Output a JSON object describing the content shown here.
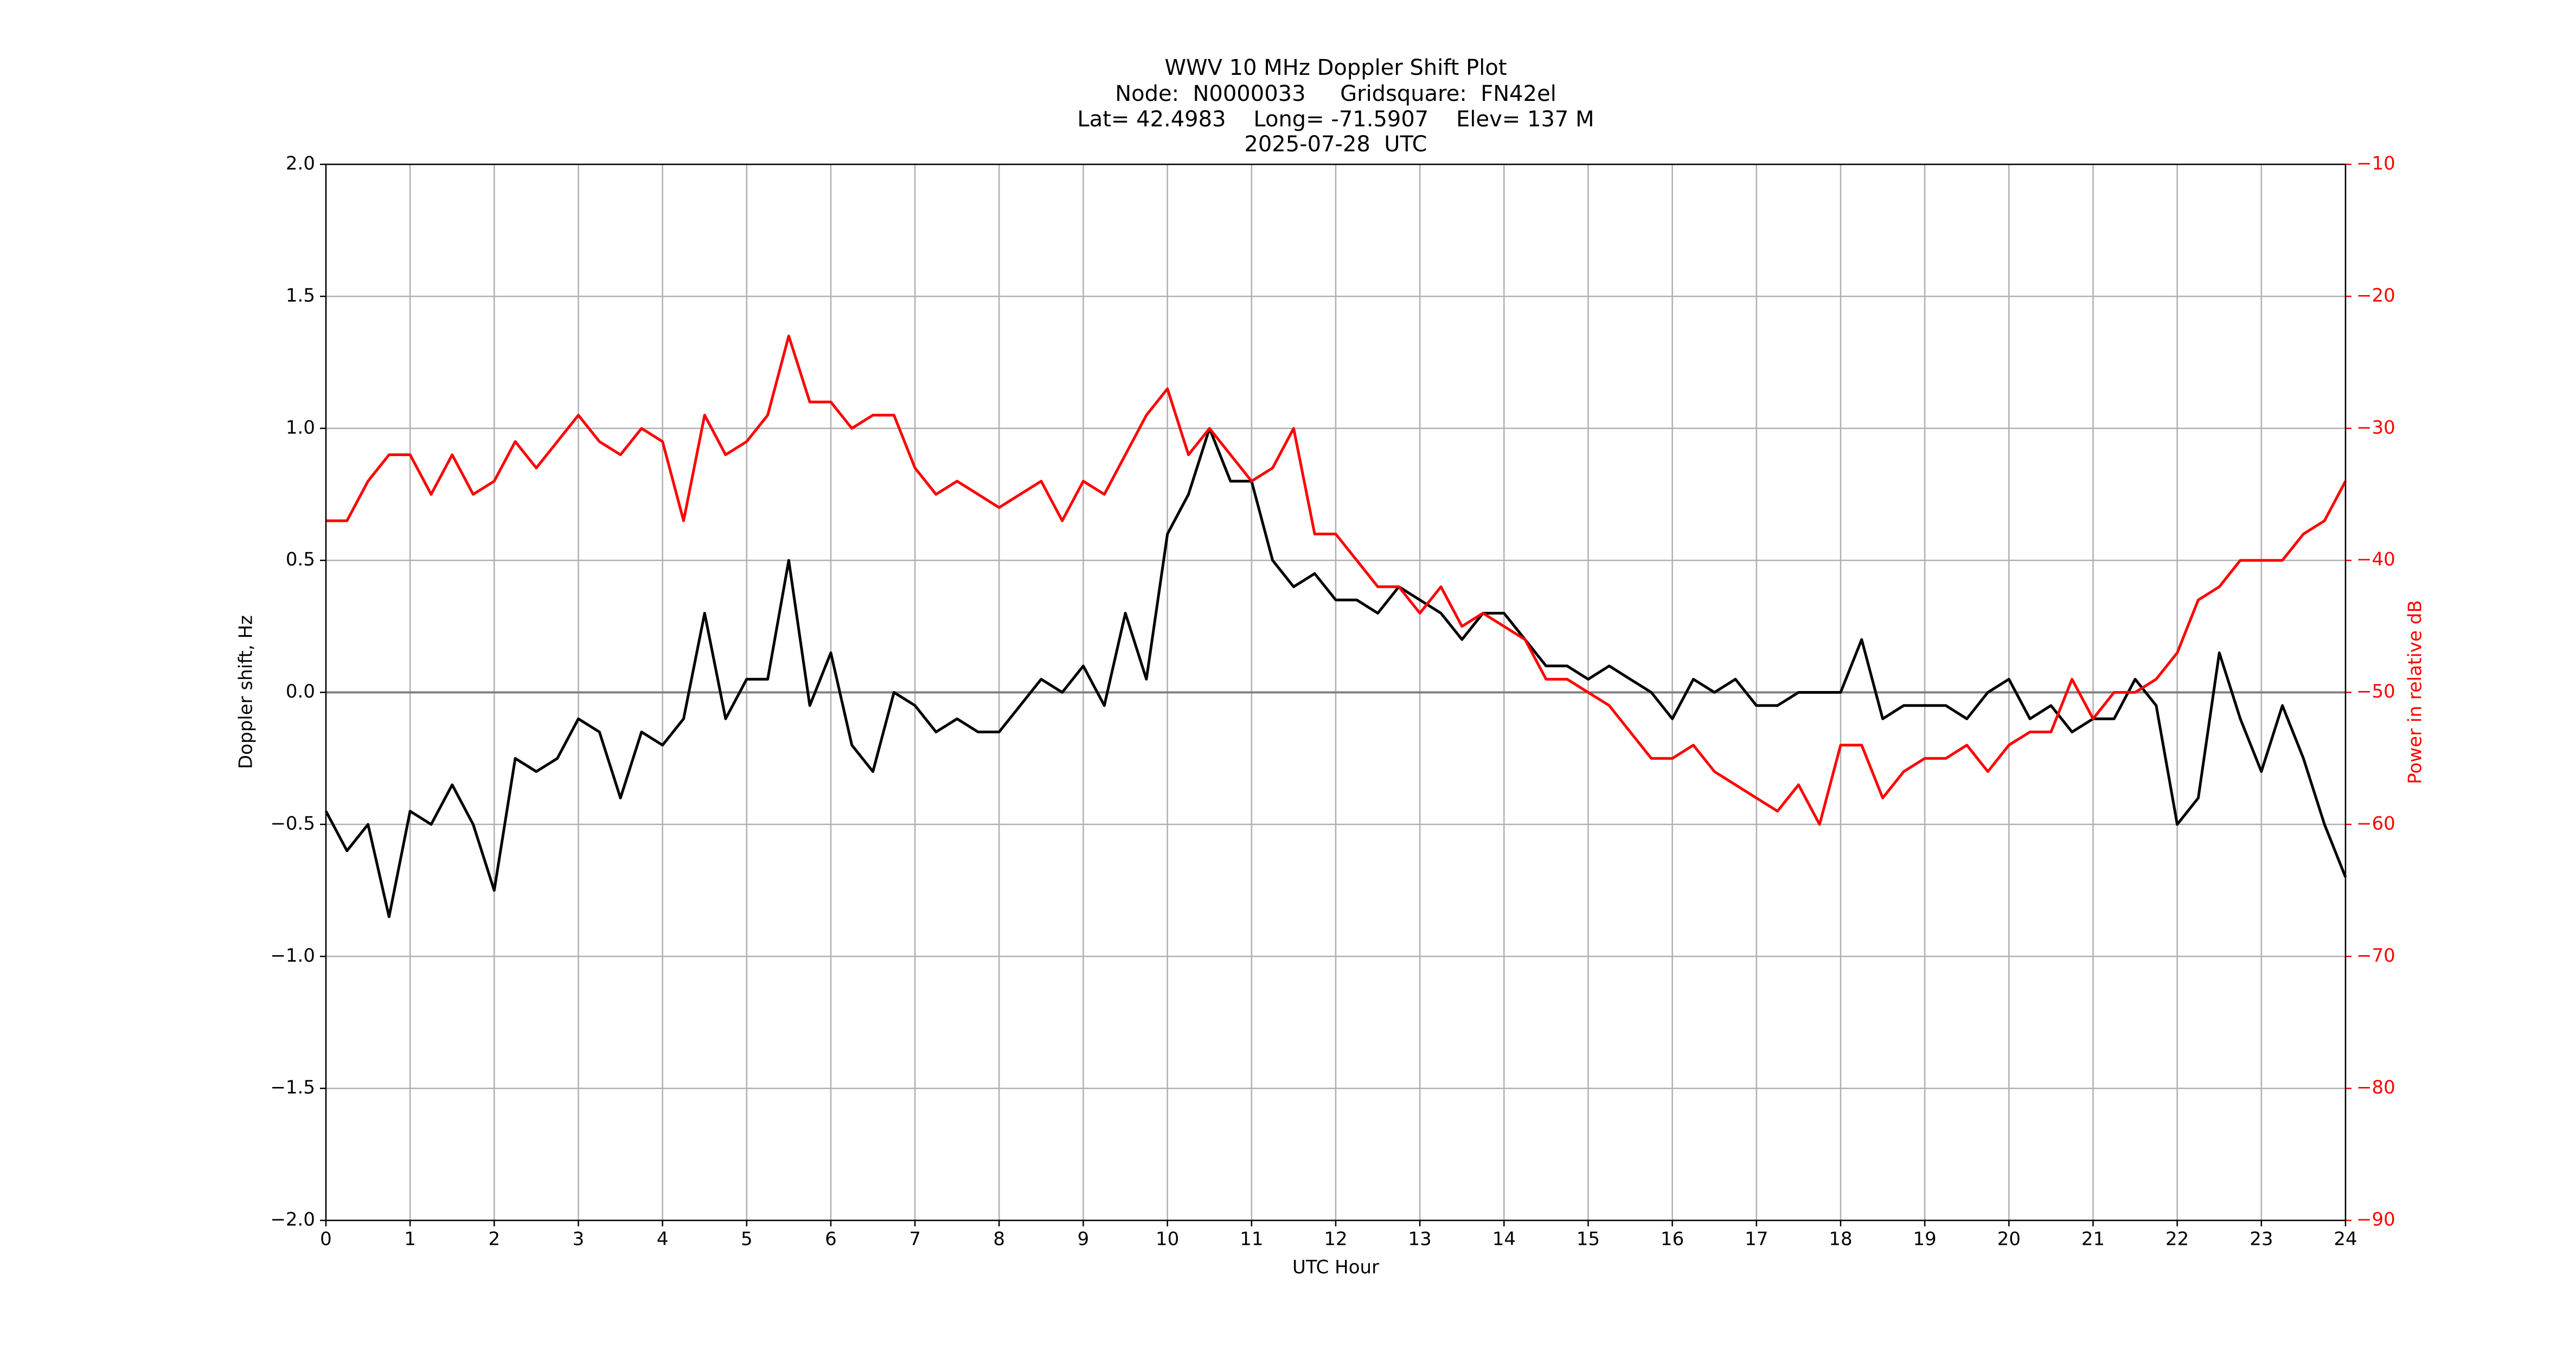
{
  "chart_data": {
    "type": "line",
    "title": [
      "WWV 10 MHz Doppler Shift Plot",
      "Node:  N0000033     Gridsquare:  FN42el",
      "Lat= 42.4983    Long= -71.5907    Elev= 137 M",
      "2025-07-28  UTC"
    ],
    "xlabel": "UTC Hour",
    "ylabel": "Doppler shift, Hz",
    "y2label": "Power in relative dB",
    "x": [
      0,
      0.25,
      0.5,
      0.75,
      1,
      1.25,
      1.5,
      1.75,
      2,
      2.25,
      2.5,
      2.75,
      3,
      3.25,
      3.5,
      3.75,
      4,
      4.25,
      4.5,
      4.75,
      5,
      5.25,
      5.5,
      5.75,
      6,
      6.25,
      6.5,
      6.75,
      7,
      7.25,
      7.5,
      7.75,
      8,
      8.25,
      8.5,
      8.75,
      9,
      9.25,
      9.5,
      9.75,
      10,
      10.25,
      10.5,
      10.75,
      11,
      11.25,
      11.5,
      11.75,
      12,
      12.25,
      12.5,
      12.75,
      13,
      13.25,
      13.5,
      13.75,
      14,
      14.25,
      14.5,
      14.75,
      15,
      15.25,
      15.5,
      15.75,
      16,
      16.25,
      16.5,
      16.75,
      17,
      17.25,
      17.5,
      17.75,
      18,
      18.25,
      18.5,
      18.75,
      19,
      19.25,
      19.5,
      19.75,
      20,
      20.25,
      20.5,
      20.75,
      21,
      21.25,
      21.5,
      21.75,
      22,
      22.25,
      22.5,
      22.75,
      23,
      23.25,
      23.5,
      23.75,
      24
    ],
    "series": [
      {
        "name": "Doppler shift",
        "color": "#000000",
        "axis": "y",
        "values": [
          -0.45,
          -0.6,
          -0.5,
          -0.85,
          -0.45,
          -0.5,
          -0.35,
          -0.5,
          -0.75,
          -0.25,
          -0.3,
          -0.25,
          -0.1,
          -0.15,
          -0.4,
          -0.15,
          -0.2,
          -0.1,
          0.3,
          -0.1,
          0.05,
          0.05,
          0.5,
          -0.05,
          0.15,
          -0.2,
          -0.3,
          0.0,
          -0.05,
          -0.15,
          -0.1,
          -0.15,
          -0.15,
          -0.05,
          0.05,
          0.0,
          0.1,
          -0.05,
          0.3,
          0.05,
          0.6,
          0.75,
          1.0,
          0.8,
          0.8,
          0.5,
          0.4,
          0.45,
          0.35,
          0.35,
          0.3,
          0.4,
          0.35,
          0.3,
          0.2,
          0.3,
          0.3,
          0.2,
          0.1,
          0.1,
          0.05,
          0.1,
          0.05,
          0.0,
          -0.1,
          0.05,
          0.0,
          0.05,
          -0.05,
          -0.05,
          0.0,
          0.0,
          0.0,
          0.2,
          -0.1,
          -0.05,
          -0.05,
          -0.05,
          -0.1,
          0.0,
          0.05,
          -0.1,
          -0.05,
          -0.15,
          -0.1,
          -0.1,
          0.05,
          -0.05,
          -0.5,
          -0.4,
          0.15,
          -0.1,
          -0.3,
          -0.05,
          -0.25,
          -0.5,
          -0.7
        ]
      },
      {
        "name": "Power",
        "color": "#ff0000",
        "axis": "y2",
        "values": [
          -37,
          -37,
          -34,
          -32,
          -32,
          -35,
          -32,
          -35,
          -34,
          -31,
          -33,
          -31,
          -29,
          -31,
          -32,
          -30,
          -31,
          -37,
          -29,
          -32,
          -31,
          -29,
          -23,
          -28,
          -28,
          -30,
          -29,
          -29,
          -33,
          -35,
          -34,
          -35,
          -36,
          -35,
          -34,
          -37,
          -34,
          -35,
          -32,
          -29,
          -27,
          -32,
          -30,
          -32,
          -34,
          -33,
          -30,
          -38,
          -38,
          -40,
          -42,
          -42,
          -44,
          -42,
          -45,
          -44,
          -45,
          -46,
          -49,
          -49,
          -50,
          -51,
          -53,
          -55,
          -55,
          -54,
          -56,
          -57,
          -58,
          -59,
          -57,
          -60,
          -54,
          -54,
          -58,
          -56,
          -55,
          -55,
          -54,
          -56,
          -54,
          -53,
          -53,
          -49,
          -52,
          -50,
          -50,
          -49,
          -47,
          -43,
          -42,
          -40,
          -40,
          -40,
          -38,
          -37,
          -34
        ]
      }
    ],
    "xlim": [
      0,
      24
    ],
    "xticks": [
      0,
      1,
      2,
      3,
      4,
      5,
      6,
      7,
      8,
      9,
      10,
      11,
      12,
      13,
      14,
      15,
      16,
      17,
      18,
      19,
      20,
      21,
      22,
      23,
      24
    ],
    "ylim": [
      -2,
      2
    ],
    "yticks": [
      {
        "value": -2,
        "label": "−2.0"
      },
      {
        "value": -1.5,
        "label": "−1.5"
      },
      {
        "value": -1,
        "label": "−1.0"
      },
      {
        "value": -0.5,
        "label": "−0.5"
      },
      {
        "value": 0,
        "label": "0.0"
      },
      0.5,
      {
        "value": 1,
        "label": "1.0"
      },
      1.5,
      {
        "value": 2,
        "label": "2.0"
      }
    ],
    "y2lim": [
      -90,
      -10
    ],
    "y2ticks": [
      {
        "value": -90,
        "label": "−90"
      },
      {
        "value": -80,
        "label": "−80"
      },
      {
        "value": -70,
        "label": "−70"
      },
      {
        "value": -60,
        "label": "−60"
      },
      {
        "value": -50,
        "label": "−50"
      },
      {
        "value": -40,
        "label": "−40"
      },
      {
        "value": -30,
        "label": "−30"
      },
      {
        "value": -20,
        "label": "−20"
      },
      {
        "value": -10,
        "label": "−10"
      }
    ],
    "y2color": "#ff0000",
    "grid": true
  }
}
